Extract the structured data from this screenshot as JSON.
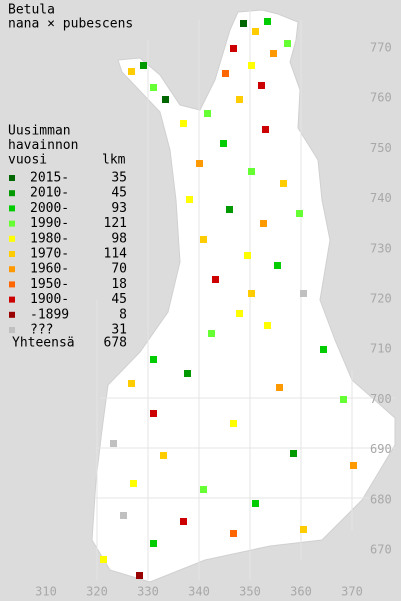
{
  "header": {
    "title": "Betula",
    "subtitle": "nana × pubescens"
  },
  "legend": {
    "heading": [
      "Uusimman",
      "havainnon",
      "vuosi"
    ],
    "count_heading": "lkm",
    "items": [
      {
        "label": "2015-",
        "count": 35,
        "color": "#006600"
      },
      {
        "label": "2010-",
        "count": 45,
        "color": "#009900"
      },
      {
        "label": "2000-",
        "count": 93,
        "color": "#00cc00"
      },
      {
        "label": "1990-",
        "count": 121,
        "color": "#66ff33"
      },
      {
        "label": "1980-",
        "count": 98,
        "color": "#ffff00"
      },
      {
        "label": "1970-",
        "count": 114,
        "color": "#ffcc00"
      },
      {
        "label": "1960-",
        "count": 70,
        "color": "#ff9900"
      },
      {
        "label": "1950-",
        "count": 18,
        "color": "#ff6600"
      },
      {
        "label": "1900-",
        "count": 45,
        "color": "#cc0000"
      },
      {
        "label": "-1899",
        "count": 8,
        "color": "#990000"
      },
      {
        "label": "???",
        "count": 31,
        "color": "#c0c0c0"
      }
    ],
    "total_label": "Yhteensä",
    "total": 678
  },
  "grid": {
    "y_labels": [
      770,
      760,
      750,
      740,
      730,
      720,
      710,
      700,
      690,
      680,
      670
    ],
    "x_labels": [
      310,
      320,
      330,
      340,
      350,
      360,
      370
    ]
  }
}
